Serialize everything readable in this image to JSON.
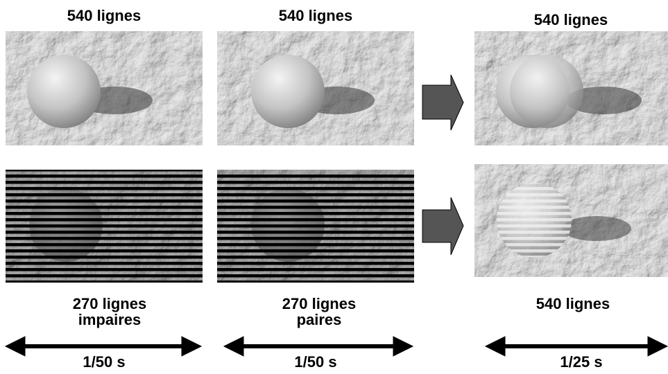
{
  "columns": [
    {
      "top_label": "540 lignes",
      "bottom_label": [
        "270 lignes",
        "impaires"
      ],
      "duration": "1/50 s"
    },
    {
      "top_label": "540 lignes",
      "bottom_label": [
        "270 lignes",
        "paires"
      ],
      "duration": "1/50 s"
    },
    {
      "top_label": "540 lignes",
      "bottom_label": [
        "540 lignes"
      ],
      "duration": "1/25 s"
    }
  ]
}
